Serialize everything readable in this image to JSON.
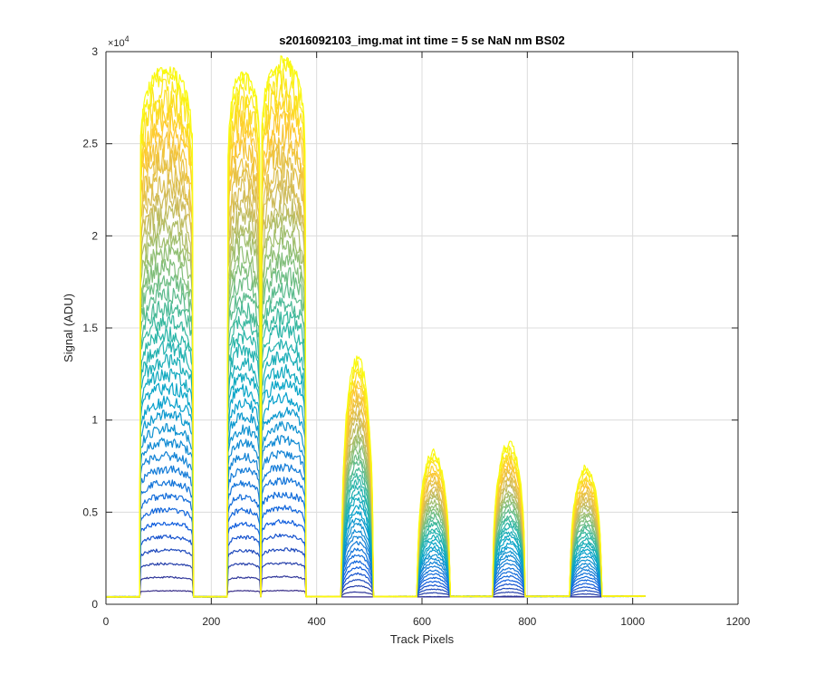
{
  "chart_data": {
    "type": "line",
    "title": "s2016092103_img.mat int time = 5 se  NaN nm BS02",
    "xlabel": "Track Pixels",
    "ylabel": "Signal (ADU)",
    "xlim": [
      0,
      1200
    ],
    "ylim": [
      0,
      30000
    ],
    "grid": true,
    "y_exponent_label": "×10",
    "y_exponent_power": "4",
    "x_ticks": [
      0,
      200,
      400,
      600,
      800,
      1000,
      1200
    ],
    "x_tick_labels": [
      "0",
      "200",
      "400",
      "600",
      "800",
      "1000",
      "1200"
    ],
    "y_ticks": [
      0,
      5000,
      10000,
      15000,
      20000,
      25000,
      30000
    ],
    "y_tick_labels": [
      "0",
      "0.5",
      "1",
      "1.5",
      "2",
      "2.5",
      "3"
    ],
    "baseline_level": 400,
    "pixel_range": [
      0,
      1024
    ],
    "num_curves": 40,
    "colormap": "parula",
    "colormap_stops": [
      "#352a87",
      "#0f5cdd",
      "#1481d6",
      "#06a4ca",
      "#2eb7a4",
      "#87bf77",
      "#d1bb59",
      "#fec832",
      "#f9fb0e"
    ],
    "bands": [
      {
        "x_start": 65,
        "x_end": 165,
        "peak": 29300
      },
      {
        "x_start": 232,
        "x_end": 292,
        "peak": 29100
      },
      {
        "x_start": 295,
        "x_end": 378,
        "peak": 29800
      },
      {
        "x_start": 448,
        "x_end": 507,
        "peak": 13300
      },
      {
        "x_start": 592,
        "x_end": 652,
        "peak": 8200
      },
      {
        "x_start": 735,
        "x_end": 795,
        "peak": 8700
      },
      {
        "x_start": 882,
        "x_end": 940,
        "peak": 7400
      }
    ]
  }
}
